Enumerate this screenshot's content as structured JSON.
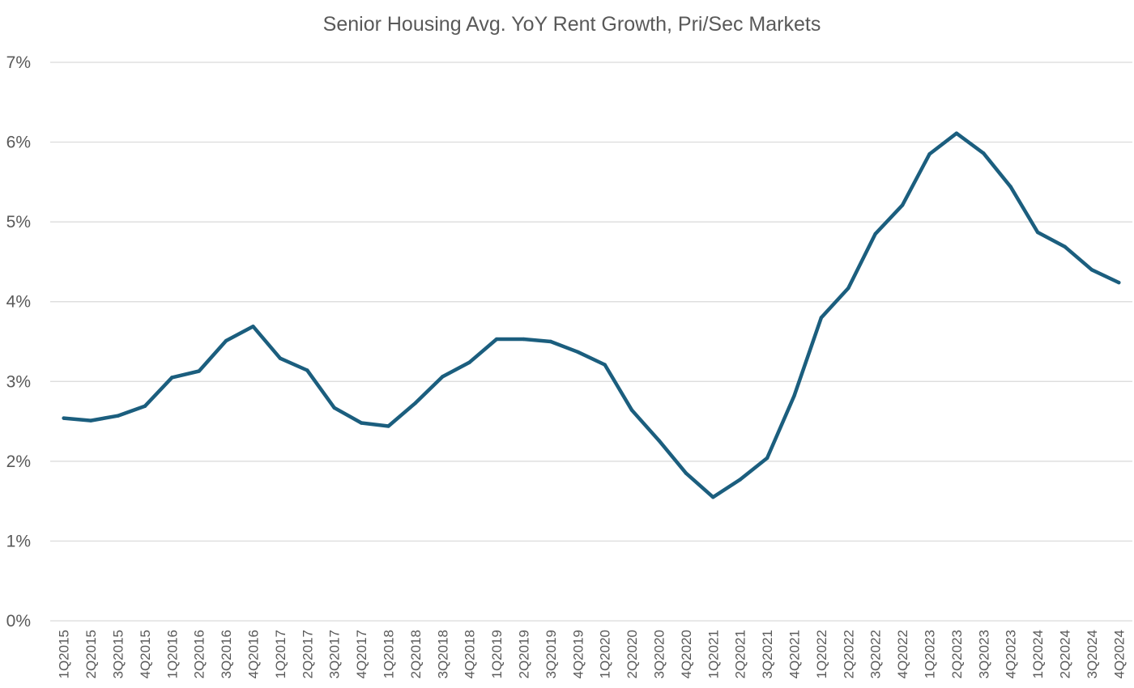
{
  "chart_data": {
    "type": "line",
    "title": "Senior Housing Avg. YoY Rent Growth, Pri/Sec Markets",
    "xlabel": "",
    "ylabel": "",
    "ylim": [
      0,
      7
    ],
    "y_unit": "%",
    "yticks": [
      "0%",
      "1%",
      "2%",
      "3%",
      "4%",
      "5%",
      "6%",
      "7%"
    ],
    "grid": true,
    "legend": "none",
    "line_color": "#1b5e7e",
    "categories": [
      "1Q2015",
      "2Q2015",
      "3Q2015",
      "4Q2015",
      "1Q2016",
      "2Q2016",
      "3Q2016",
      "4Q2016",
      "1Q2017",
      "2Q2017",
      "3Q2017",
      "4Q2017",
      "1Q2018",
      "2Q2018",
      "3Q2018",
      "4Q2018",
      "1Q2019",
      "2Q2019",
      "3Q2019",
      "4Q2019",
      "1Q2020",
      "2Q2020",
      "3Q2020",
      "4Q2020",
      "1Q2021",
      "2Q2021",
      "3Q2021",
      "4Q2021",
      "1Q2022",
      "2Q2022",
      "3Q2022",
      "4Q2022",
      "1Q2023",
      "2Q2023",
      "3Q2023",
      "4Q2023",
      "1Q2024",
      "2Q2024",
      "3Q2024",
      "4Q2024"
    ],
    "series": [
      {
        "values": [
          2.54,
          2.51,
          2.57,
          2.69,
          3.05,
          3.13,
          3.51,
          3.69,
          3.29,
          3.14,
          2.67,
          2.48,
          2.44,
          2.73,
          3.06,
          3.24,
          3.53,
          3.53,
          3.5,
          3.37,
          3.21,
          2.64,
          2.26,
          1.85,
          1.55,
          1.77,
          2.04,
          2.82,
          3.8,
          4.17,
          4.85,
          5.21,
          5.85,
          6.11,
          5.86,
          5.44,
          4.87,
          4.69,
          4.4,
          4.24
        ]
      }
    ]
  }
}
